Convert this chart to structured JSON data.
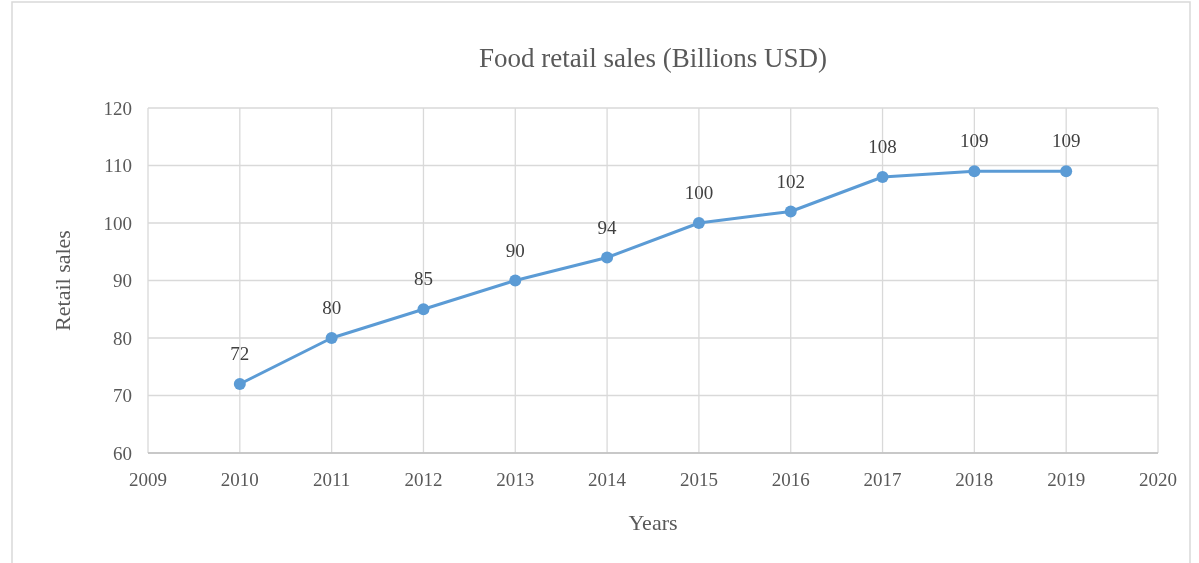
{
  "chart_data": {
    "type": "line",
    "title": "Food retail sales (Billions USD)",
    "xlabel": "Years",
    "ylabel": "Retail sales",
    "x": [
      2010,
      2011,
      2012,
      2013,
      2014,
      2015,
      2016,
      2017,
      2018,
      2019
    ],
    "series": [
      {
        "color": "#5b9bd5",
        "values": [
          72,
          80,
          85,
          90,
          94,
          100,
          102,
          108,
          109,
          109
        ]
      }
    ],
    "xlim": [
      2009,
      2020
    ],
    "xticks": [
      2009,
      2010,
      2011,
      2012,
      2013,
      2014,
      2015,
      2016,
      2017,
      2018,
      2019,
      2020
    ],
    "ylim": [
      60,
      120
    ],
    "yticks": [
      60,
      70,
      80,
      90,
      100,
      110,
      120
    ],
    "grid": true,
    "marker": "circle",
    "line_style": "solid",
    "data_labels": true
  }
}
